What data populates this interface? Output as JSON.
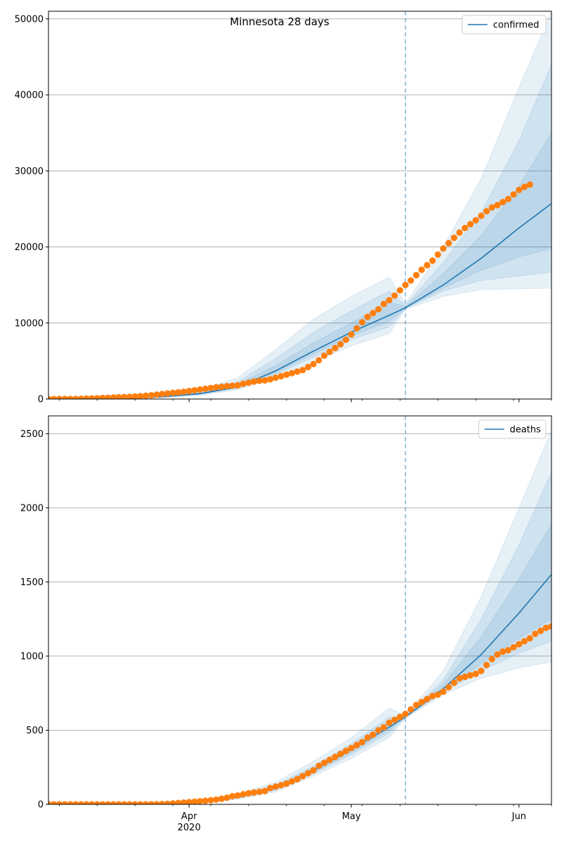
{
  "figure_title": "Minnesota 28 days",
  "colors": {
    "model": "#1f77b4",
    "observed": "#ff7f0e",
    "band": "#1f77b4",
    "grid": "#b0b0b0",
    "forecast_line": "#1f77b4"
  },
  "x_ticks": [
    {
      "date": "2020-04-01",
      "label": "Apr",
      "sublabel": "2020"
    },
    {
      "date": "2020-05-01",
      "label": "May",
      "sublabel": ""
    },
    {
      "date": "2020-06-01",
      "label": "Jun",
      "sublabel": ""
    }
  ],
  "chart_data": [
    {
      "type": "line",
      "legend": "confirmed",
      "legend_position": "top-right",
      "grid": "y",
      "xlim": [
        "2020-03-06",
        "2020-06-07"
      ],
      "ylim": [
        0,
        51000
      ],
      "yticks": [
        0,
        10000,
        20000,
        30000,
        40000,
        50000
      ],
      "forecast_start": "2020-05-11",
      "model": {
        "x": [
          "2020-03-06",
          "2020-03-13",
          "2020-03-20",
          "2020-03-27",
          "2020-04-03",
          "2020-04-10",
          "2020-04-17",
          "2020-04-24",
          "2020-05-01",
          "2020-05-08",
          "2020-05-11",
          "2020-05-18",
          "2020-05-25",
          "2020-06-01",
          "2020-06-07"
        ],
        "y": [
          0,
          20,
          80,
          300,
          700,
          1600,
          3700,
          6300,
          8800,
          11000,
          12000,
          15000,
          18500,
          22500,
          25700
        ]
      },
      "bands": [
        {
          "x": [
            "2020-03-06",
            "2020-03-13",
            "2020-03-20",
            "2020-03-27",
            "2020-04-03",
            "2020-04-10",
            "2020-04-17",
            "2020-04-24",
            "2020-05-01",
            "2020-05-08",
            "2020-05-11",
            "2020-05-18",
            "2020-05-25",
            "2020-06-01",
            "2020-06-07"
          ],
          "lower": [
            0,
            10,
            50,
            200,
            500,
            1200,
            2900,
            4900,
            7000,
            8600,
            11800,
            13500,
            14400,
            14500,
            14600
          ],
          "upper": [
            0,
            40,
            150,
            500,
            1200,
            2800,
            6500,
            10500,
            13500,
            16000,
            12500,
            20000,
            29000,
            41000,
            51000
          ]
        },
        {
          "x": [
            "2020-03-06",
            "2020-03-13",
            "2020-03-20",
            "2020-03-27",
            "2020-04-03",
            "2020-04-10",
            "2020-04-17",
            "2020-04-24",
            "2020-05-01",
            "2020-05-08",
            "2020-05-11",
            "2020-05-18",
            "2020-05-25",
            "2020-06-01",
            "2020-06-07"
          ],
          "lower": [
            0,
            15,
            60,
            250,
            600,
            1400,
            3200,
            5500,
            7800,
            9500,
            11900,
            14200,
            15600,
            16200,
            16700
          ],
          "upper": [
            0,
            30,
            120,
            420,
            1000,
            2300,
            5300,
            8800,
            11600,
            14200,
            12300,
            18000,
            24500,
            34000,
            44000
          ]
        },
        {
          "x": [
            "2020-03-06",
            "2020-03-13",
            "2020-03-20",
            "2020-03-27",
            "2020-04-03",
            "2020-04-10",
            "2020-04-17",
            "2020-04-24",
            "2020-05-01",
            "2020-05-08",
            "2020-05-11",
            "2020-05-18",
            "2020-05-25",
            "2020-06-01",
            "2020-06-07"
          ],
          "lower": [
            0,
            17,
            70,
            270,
            650,
            1500,
            3450,
            5900,
            8300,
            10200,
            11950,
            14600,
            16900,
            18700,
            19800
          ],
          "upper": [
            0,
            25,
            100,
            360,
            850,
            1950,
            4400,
            7400,
            10000,
            12800,
            12150,
            16500,
            21500,
            28000,
            35000
          ]
        }
      ],
      "observed": {
        "start": "2020-03-06",
        "y": [
          2,
          3,
          5,
          8,
          12,
          20,
          35,
          55,
          80,
          110,
          140,
          170,
          200,
          230,
          260,
          290,
          330,
          380,
          430,
          500,
          580,
          660,
          740,
          810,
          880,
          950,
          1050,
          1150,
          1250,
          1350,
          1450,
          1550,
          1620,
          1700,
          1750,
          1800,
          2000,
          2150,
          2300,
          2400,
          2450,
          2600,
          2800,
          3000,
          3200,
          3400,
          3600,
          3800,
          4200,
          4600,
          5100,
          5700,
          6200,
          6700,
          7200,
          7800,
          8500,
          9300,
          10100,
          10800,
          11300,
          11800,
          12500,
          13000,
          13600,
          14300,
          15000,
          15600,
          16300,
          17000,
          17600,
          18200,
          19000,
          19800,
          20500,
          21200,
          21900,
          22500,
          23000,
          23500,
          24100,
          24700,
          25200,
          25500,
          25900,
          26300,
          26900,
          27500,
          27900,
          28200
        ]
      }
    },
    {
      "type": "line",
      "legend": "deaths",
      "legend_position": "top-right",
      "grid": "y",
      "xlim": [
        "2020-03-06",
        "2020-06-07"
      ],
      "ylim": [
        0,
        2620
      ],
      "yticks": [
        0,
        500,
        1000,
        1500,
        2000,
        2500
      ],
      "forecast_start": "2020-05-11",
      "model": {
        "x": [
          "2020-03-06",
          "2020-03-13",
          "2020-03-20",
          "2020-03-27",
          "2020-04-03",
          "2020-04-10",
          "2020-04-17",
          "2020-04-24",
          "2020-05-01",
          "2020-05-08",
          "2020-05-11",
          "2020-05-18",
          "2020-05-25",
          "2020-06-01",
          "2020-06-07"
        ],
        "y": [
          0,
          0,
          1,
          3,
          15,
          50,
          110,
          230,
          370,
          520,
          590,
          780,
          1010,
          1290,
          1550
        ]
      },
      "bands": [
        {
          "x": [
            "2020-03-06",
            "2020-03-13",
            "2020-03-20",
            "2020-03-27",
            "2020-04-03",
            "2020-04-10",
            "2020-04-17",
            "2020-04-24",
            "2020-05-01",
            "2020-05-08",
            "2020-05-11",
            "2020-05-18",
            "2020-05-25",
            "2020-06-01",
            "2020-06-07"
          ],
          "lower": [
            0,
            0,
            0,
            1,
            8,
            35,
            85,
            190,
            310,
            450,
            580,
            740,
            850,
            920,
            960
          ],
          "upper": [
            0,
            0,
            2,
            6,
            25,
            70,
            150,
            290,
            450,
            650,
            600,
            900,
            1400,
            2000,
            2520
          ]
        },
        {
          "x": [
            "2020-03-06",
            "2020-03-13",
            "2020-03-20",
            "2020-03-27",
            "2020-04-03",
            "2020-04-10",
            "2020-04-17",
            "2020-04-24",
            "2020-05-01",
            "2020-05-08",
            "2020-05-11",
            "2020-05-18",
            "2020-05-25",
            "2020-06-01",
            "2020-06-07"
          ],
          "lower": [
            0,
            0,
            0,
            2,
            10,
            40,
            95,
            205,
            335,
            480,
            585,
            755,
            900,
            1020,
            1100
          ],
          "upper": [
            0,
            0,
            2,
            5,
            20,
            60,
            130,
            260,
            410,
            590,
            595,
            840,
            1250,
            1750,
            2240
          ]
        },
        {
          "x": [
            "2020-03-06",
            "2020-03-13",
            "2020-03-20",
            "2020-03-27",
            "2020-04-03",
            "2020-04-10",
            "2020-04-17",
            "2020-04-24",
            "2020-05-01",
            "2020-05-08",
            "2020-05-11",
            "2020-05-18",
            "2020-05-25",
            "2020-06-01",
            "2020-06-07"
          ],
          "lower": [
            0,
            0,
            0,
            2,
            12,
            45,
            100,
            215,
            350,
            500,
            588,
            765,
            950,
            1120,
            1250
          ],
          "upper": [
            0,
            0,
            1,
            4,
            18,
            55,
            120,
            245,
            390,
            550,
            592,
            810,
            1130,
            1520,
            1890
          ]
        }
      ],
      "observed": {
        "start": "2020-03-06",
        "y": [
          0,
          0,
          0,
          0,
          0,
          0,
          0,
          0,
          0,
          0,
          0,
          0,
          0,
          0,
          0,
          0,
          0,
          0,
          0,
          1,
          1,
          2,
          4,
          6,
          9,
          12,
          15,
          18,
          21,
          24,
          28,
          32,
          38,
          45,
          55,
          60,
          68,
          75,
          80,
          85,
          90,
          110,
          120,
          130,
          140,
          155,
          170,
          190,
          210,
          230,
          260,
          280,
          300,
          320,
          340,
          360,
          380,
          400,
          420,
          450,
          470,
          500,
          520,
          550,
          570,
          590,
          610,
          640,
          670,
          690,
          710,
          730,
          740,
          760,
          790,
          820,
          850,
          860,
          870,
          880,
          900,
          940,
          980,
          1010,
          1030,
          1040,
          1060,
          1080,
          1100,
          1120,
          1150,
          1170,
          1190,
          1200
        ]
      }
    }
  ]
}
